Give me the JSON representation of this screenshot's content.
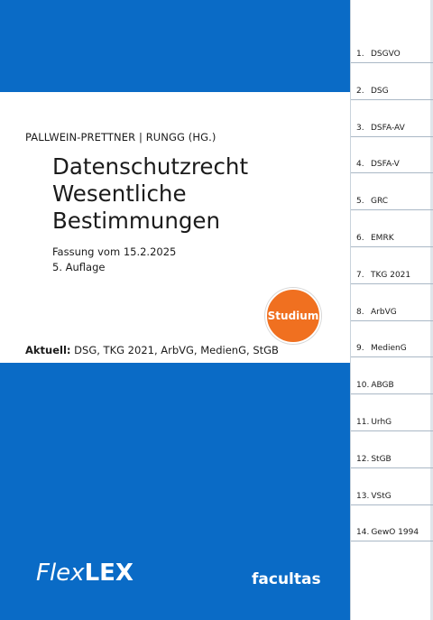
{
  "cover": {
    "editors": "PALLWEIN-PRETTNER | RUNGG (HG.)",
    "title_lines": [
      "Datenschutzrecht",
      "Wesentliche",
      "Bestimmungen"
    ],
    "version": "Fassung vom 15.2.2025",
    "edition": "5. Auflage",
    "current_label": "Aktuell:",
    "current_laws": "DSG, TKG 2021, ArbVG, MedienG, StGB",
    "badge": "Studium",
    "brand_flex": "Flex",
    "brand_lex": "LEX",
    "publisher": "facultas"
  },
  "colors": {
    "cover_blue": "#0a6bc6",
    "badge_orange": "#f07020"
  },
  "tabs": [
    {
      "number": "1.",
      "label": "DSGVO"
    },
    {
      "number": "2.",
      "label": "DSG"
    },
    {
      "number": "3.",
      "label": "DSFA-AV"
    },
    {
      "number": "4.",
      "label": "DSFA-V"
    },
    {
      "number": "5.",
      "label": "GRC"
    },
    {
      "number": "6.",
      "label": "EMRK"
    },
    {
      "number": "7.",
      "label": "TKG 2021"
    },
    {
      "number": "8.",
      "label": "ArbVG"
    },
    {
      "number": "9.",
      "label": "MedienG"
    },
    {
      "number": "10.",
      "label": "ABGB"
    },
    {
      "number": "11.",
      "label": "UrhG"
    },
    {
      "number": "12.",
      "label": "StGB"
    },
    {
      "number": "13.",
      "label": "VStG"
    },
    {
      "number": "14.",
      "label": "GewO 1994"
    }
  ]
}
